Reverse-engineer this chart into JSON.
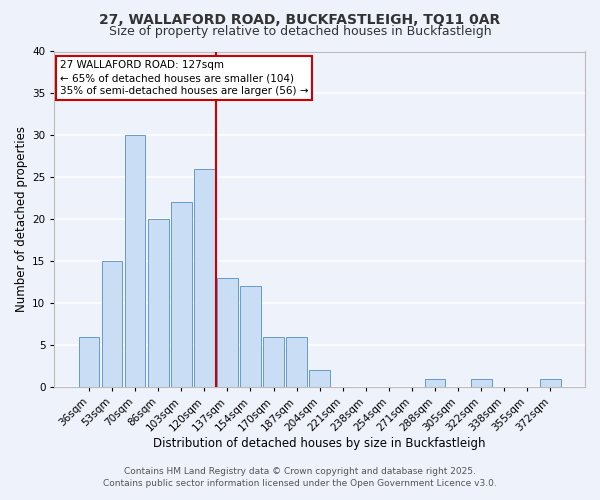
{
  "title": "27, WALLAFORD ROAD, BUCKFASTLEIGH, TQ11 0AR",
  "subtitle": "Size of property relative to detached houses in Buckfastleigh",
  "xlabel": "Distribution of detached houses by size in Buckfastleigh",
  "ylabel": "Number of detached properties",
  "bar_labels": [
    "36sqm",
    "53sqm",
    "70sqm",
    "86sqm",
    "103sqm",
    "120sqm",
    "137sqm",
    "154sqm",
    "170sqm",
    "187sqm",
    "204sqm",
    "221sqm",
    "238sqm",
    "254sqm",
    "271sqm",
    "288sqm",
    "305sqm",
    "322sqm",
    "338sqm",
    "355sqm",
    "372sqm"
  ],
  "bar_values": [
    6,
    15,
    30,
    20,
    22,
    26,
    13,
    12,
    6,
    6,
    2,
    0,
    0,
    0,
    0,
    1,
    0,
    1,
    0,
    0,
    1
  ],
  "bar_color": "#c9ddf5",
  "bar_edge_color": "#6699cc",
  "vline_x": 5.5,
  "vline_color": "#cc0000",
  "ylim": [
    0,
    40
  ],
  "yticks": [
    0,
    5,
    10,
    15,
    20,
    25,
    30,
    35,
    40
  ],
  "annotation_title": "27 WALLAFORD ROAD: 127sqm",
  "annotation_line1": "← 65% of detached houses are smaller (104)",
  "annotation_line2": "35% of semi-detached houses are larger (56) →",
  "annotation_box_edge": "#cc0000",
  "footer_line1": "Contains HM Land Registry data © Crown copyright and database right 2025.",
  "footer_line2": "Contains public sector information licensed under the Open Government Licence v3.0.",
  "bg_color": "#eef2fb",
  "grid_color": "#ffffff",
  "title_fontsize": 10,
  "subtitle_fontsize": 9,
  "axis_label_fontsize": 8.5,
  "tick_fontsize": 7.5,
  "footer_fontsize": 6.5,
  "annotation_fontsize": 7.5
}
